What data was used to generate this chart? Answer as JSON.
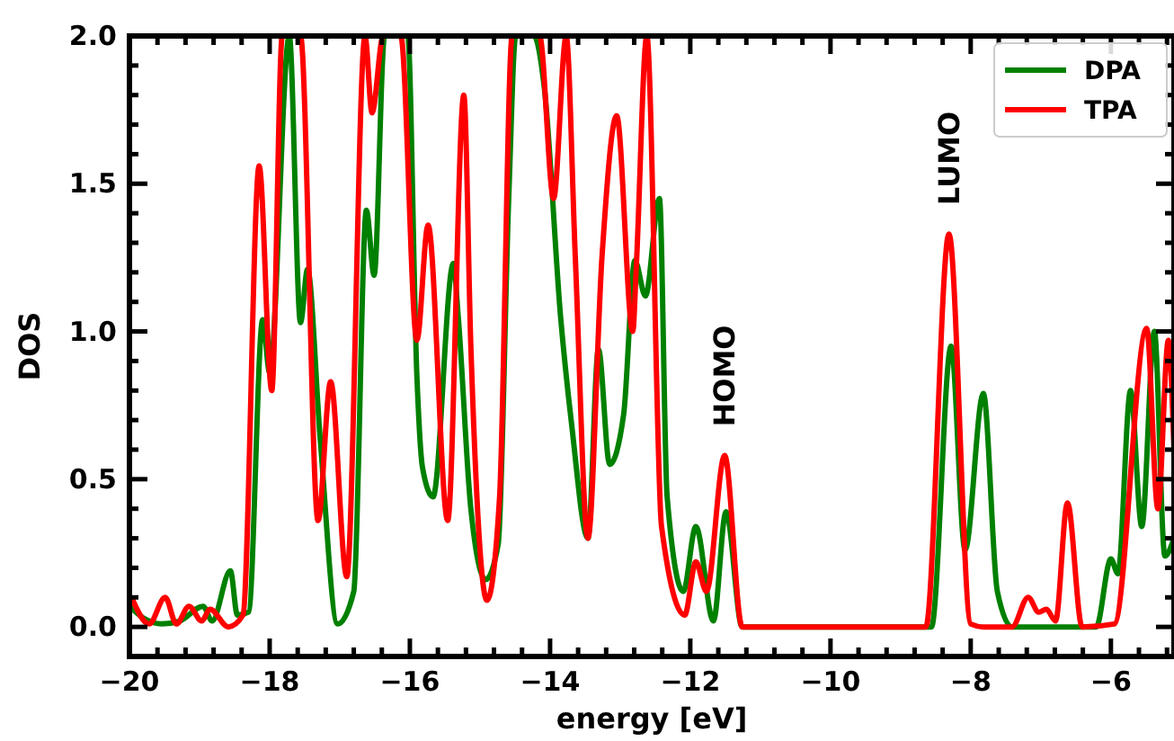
{
  "chart_data": {
    "type": "line",
    "xlabel": "energy [eV]",
    "ylabel": "DOS",
    "xlim": [
      -20,
      -5.1
    ],
    "ylim": [
      -0.1,
      2.0
    ],
    "xticks": [
      {
        "value": -20,
        "label": "−20"
      },
      {
        "value": -19.6,
        "label": null
      },
      {
        "value": -19.2,
        "label": null
      },
      {
        "value": -18.8,
        "label": null
      },
      {
        "value": -18.4,
        "label": null
      },
      {
        "value": -18,
        "label": "−18"
      },
      {
        "value": -17.6,
        "label": null
      },
      {
        "value": -17.2,
        "label": null
      },
      {
        "value": -16.8,
        "label": null
      },
      {
        "value": -16.4,
        "label": null
      },
      {
        "value": -16,
        "label": "−16"
      },
      {
        "value": -15.6,
        "label": null
      },
      {
        "value": -15.2,
        "label": null
      },
      {
        "value": -14.8,
        "label": null
      },
      {
        "value": -14.4,
        "label": null
      },
      {
        "value": -14,
        "label": "−14"
      },
      {
        "value": -13.6,
        "label": null
      },
      {
        "value": -13.2,
        "label": null
      },
      {
        "value": -12.8,
        "label": null
      },
      {
        "value": -12.4,
        "label": null
      },
      {
        "value": -12,
        "label": "−12"
      },
      {
        "value": -11.6,
        "label": null
      },
      {
        "value": -11.2,
        "label": null
      },
      {
        "value": -10.8,
        "label": null
      },
      {
        "value": -10.4,
        "label": null
      },
      {
        "value": -10,
        "label": "−10"
      },
      {
        "value": -9.6,
        "label": null
      },
      {
        "value": -9.2,
        "label": null
      },
      {
        "value": -8.8,
        "label": null
      },
      {
        "value": -8.4,
        "label": null
      },
      {
        "value": -8,
        "label": "−8"
      },
      {
        "value": -7.6,
        "label": null
      },
      {
        "value": -7.2,
        "label": null
      },
      {
        "value": -6.8,
        "label": null
      },
      {
        "value": -6.4,
        "label": null
      },
      {
        "value": -6,
        "label": "−6"
      },
      {
        "value": -5.6,
        "label": null
      },
      {
        "value": -5.2,
        "label": null
      }
    ],
    "yticks": [
      {
        "value": 0,
        "label": "0.0"
      },
      {
        "value": 0.1,
        "label": null
      },
      {
        "value": 0.2,
        "label": null
      },
      {
        "value": 0.3,
        "label": null
      },
      {
        "value": 0.4,
        "label": null
      },
      {
        "value": 0.5,
        "label": "0.5"
      },
      {
        "value": 0.6,
        "label": null
      },
      {
        "value": 0.7,
        "label": null
      },
      {
        "value": 0.8,
        "label": null
      },
      {
        "value": 0.9,
        "label": null
      },
      {
        "value": 1.0,
        "label": "1.0"
      },
      {
        "value": 1.1,
        "label": null
      },
      {
        "value": 1.2,
        "label": null
      },
      {
        "value": 1.3,
        "label": null
      },
      {
        "value": 1.4,
        "label": null
      },
      {
        "value": 1.5,
        "label": "1.5"
      },
      {
        "value": 1.6,
        "label": null
      },
      {
        "value": 1.7,
        "label": null
      },
      {
        "value": 1.8,
        "label": null
      },
      {
        "value": 1.9,
        "label": null
      },
      {
        "value": 2.0,
        "label": "2.0"
      }
    ],
    "grid": false,
    "legend": "top right",
    "line_style": "solid",
    "marker": "none",
    "annotations": [
      {
        "text": "HOMO",
        "x": -11.51,
        "y": 0.58
      },
      {
        "text": "LUMO",
        "x": -8.31,
        "y": 1.33
      }
    ],
    "series": [
      {
        "name": "DPA",
        "color": "#008000",
        "x": [
          -20,
          -19.8,
          -19.54,
          -19.28,
          -18.95,
          -18.82,
          -18.56,
          -18.46,
          -18.3,
          -18.1,
          -18.0,
          -17.72,
          -17.56,
          -17.46,
          -17.28,
          -17.03,
          -16.8,
          -16.62,
          -16.51,
          -16.36,
          -16.03,
          -15.9,
          -15.82,
          -15.67,
          -15.38,
          -15.31,
          -15.13,
          -14.92,
          -14.74,
          -14.59,
          -14.49,
          -14.23,
          -14.08,
          -13.85,
          -13.69,
          -13.46,
          -13.31,
          -13.15,
          -12.95,
          -12.79,
          -12.64,
          -12.44,
          -12.33,
          -12.1,
          -11.92,
          -11.67,
          -11.49,
          -11.26,
          -8.56,
          -8.28,
          -8.08,
          -7.82,
          -7.62,
          -7.41,
          -6.21,
          -6.0,
          -5.9,
          -5.72,
          -5.56,
          -5.38,
          -5.23,
          -5.1
        ],
        "values": [
          0.07,
          0.03,
          0.01,
          0.02,
          0.07,
          0.02,
          0.19,
          0.04,
          0.05,
          1.04,
          0.86,
          2.0,
          1.03,
          1.21,
          0.64,
          0.01,
          0.12,
          1.41,
          1.19,
          2.0,
          2.0,
          0.85,
          0.54,
          0.44,
          1.23,
          1.05,
          0.4,
          0.16,
          0.28,
          1.45,
          2.0,
          2.0,
          1.82,
          1.05,
          0.68,
          0.3,
          0.94,
          0.55,
          0.72,
          1.24,
          1.12,
          1.45,
          0.44,
          0.12,
          0.34,
          0.02,
          0.39,
          0.0,
          0.0,
          0.95,
          0.26,
          0.79,
          0.12,
          0.0,
          0.0,
          0.23,
          0.18,
          0.8,
          0.34,
          1.0,
          0.24,
          0.3
        ]
      },
      {
        "name": "TPA",
        "color": "#ff0000",
        "x": [
          -19.97,
          -19.72,
          -19.49,
          -19.33,
          -19.15,
          -18.97,
          -18.85,
          -18.59,
          -18.38,
          -18.15,
          -17.97,
          -17.82,
          -17.56,
          -17.31,
          -17.13,
          -16.9,
          -16.64,
          -16.54,
          -16.38,
          -16.13,
          -15.9,
          -15.74,
          -15.46,
          -15.23,
          -15.13,
          -14.9,
          -14.72,
          -14.54,
          -14.15,
          -13.95,
          -13.77,
          -13.64,
          -13.46,
          -13.26,
          -13.05,
          -12.82,
          -12.77,
          -12.62,
          -12.41,
          -12.08,
          -11.92,
          -11.77,
          -11.51,
          -11.26,
          -8.64,
          -8.31,
          -8.0,
          -7.82,
          -7.41,
          -7.18,
          -7.03,
          -6.92,
          -6.79,
          -6.62,
          -6.41,
          -5.95,
          -5.49,
          -5.33,
          -5.18,
          -5.1
        ],
        "values": [
          0.1,
          0.01,
          0.1,
          0.01,
          0.07,
          0.02,
          0.06,
          0.0,
          0.04,
          1.56,
          0.8,
          2.0,
          2.0,
          0.36,
          0.83,
          0.17,
          2.0,
          1.74,
          2.0,
          2.0,
          0.97,
          1.36,
          0.36,
          1.8,
          0.95,
          0.09,
          0.44,
          2.0,
          2.0,
          1.45,
          2.0,
          1.25,
          0.3,
          1.25,
          1.73,
          1.0,
          1.22,
          2.0,
          0.34,
          0.04,
          0.22,
          0.12,
          0.58,
          0.0,
          0.0,
          1.33,
          0.01,
          0.0,
          0.0,
          0.1,
          0.05,
          0.06,
          0.02,
          0.42,
          0.0,
          0.01,
          1.01,
          0.4,
          0.97,
          0.6
        ]
      }
    ]
  }
}
